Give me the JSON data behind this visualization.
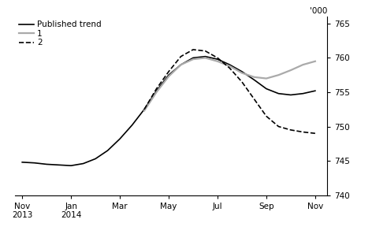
{
  "ylabel": "'000",
  "ylim": [
    740,
    766
  ],
  "yticks": [
    740,
    745,
    750,
    755,
    760,
    765
  ],
  "x_labels": [
    "Nov\n2013",
    "Jan\n2014",
    "Mar",
    "May",
    "Jul",
    "Sep",
    "Nov"
  ],
  "x_positions": [
    0,
    2,
    4,
    6,
    8,
    10,
    12
  ],
  "published_trend": {
    "x": [
      0,
      0.5,
      1,
      1.5,
      2,
      2.5,
      3,
      3.5,
      4,
      4.5,
      5,
      5.5,
      6,
      6.5,
      7,
      7.5,
      8,
      8.5,
      9,
      9.5,
      10,
      10.5,
      11,
      11.5,
      12
    ],
    "y": [
      744.8,
      744.7,
      744.5,
      744.4,
      744.3,
      744.6,
      745.3,
      746.5,
      748.2,
      750.2,
      752.5,
      755.2,
      757.5,
      759.0,
      760.0,
      760.2,
      759.8,
      759.0,
      758.0,
      756.8,
      755.5,
      754.8,
      754.6,
      754.8,
      755.2
    ],
    "color": "#000000",
    "linewidth": 1.2,
    "linestyle": "-"
  },
  "revision1": {
    "x": [
      5,
      5.5,
      6,
      6.5,
      7,
      7.5,
      8,
      8.5,
      9,
      9.5,
      10,
      10.5,
      11,
      11.5,
      12
    ],
    "y": [
      752.3,
      755.0,
      757.3,
      759.0,
      759.8,
      760.0,
      759.5,
      758.8,
      757.8,
      757.2,
      757.0,
      757.5,
      758.2,
      759.0,
      759.5
    ],
    "color": "#aaaaaa",
    "linewidth": 1.6,
    "linestyle": "-"
  },
  "revision2": {
    "x": [
      5,
      5.5,
      6,
      6.5,
      7,
      7.5,
      8,
      8.5,
      9,
      9.5,
      10,
      10.5,
      11,
      11.5,
      12
    ],
    "y": [
      752.5,
      755.5,
      758.0,
      760.2,
      761.2,
      761.0,
      760.0,
      758.5,
      756.5,
      754.0,
      751.5,
      750.0,
      749.5,
      749.2,
      749.0
    ],
    "color": "#000000",
    "linewidth": 1.2,
    "linestyle": "--"
  },
  "legend": {
    "published_trend_label": "Published trend",
    "revision1_label": "1",
    "revision2_label": "2"
  },
  "background_color": "#ffffff"
}
